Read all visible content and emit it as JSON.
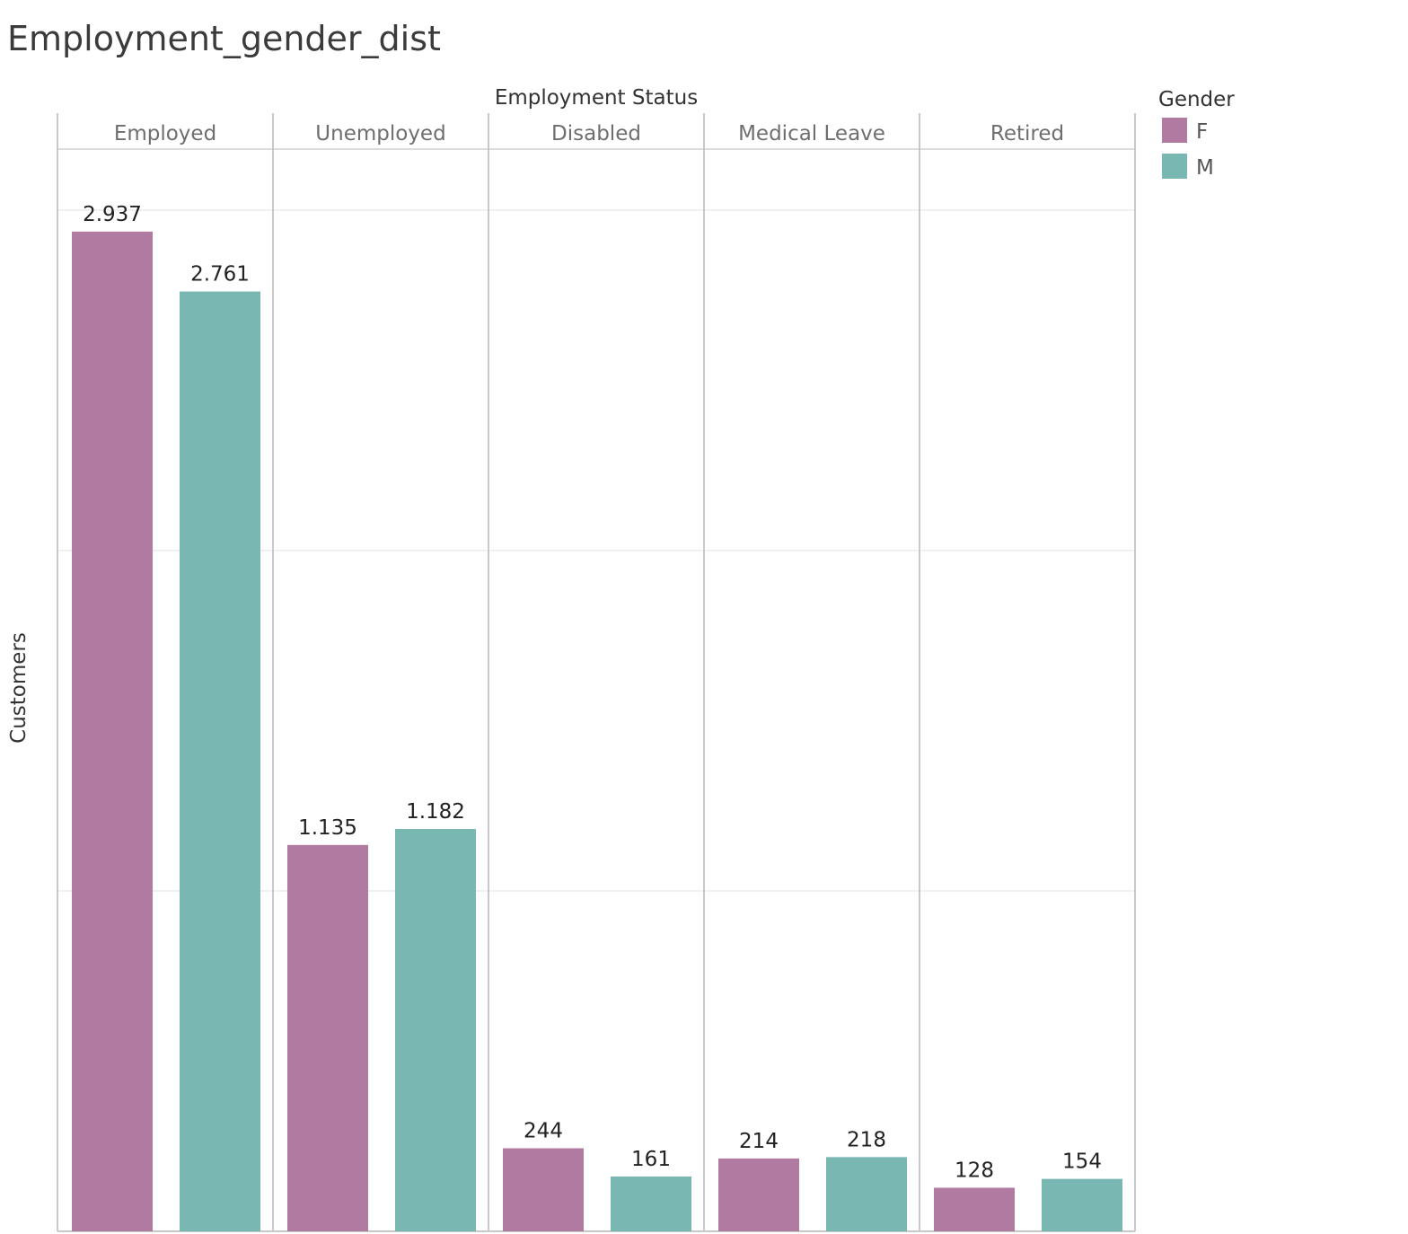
{
  "title": "Employment_gender_dist",
  "chart_data": {
    "type": "bar",
    "title": "Employment_gender_dist",
    "column_header": "Employment Status",
    "ylabel": "Customers",
    "categories": [
      "Employed",
      "Unemployed",
      "Disabled",
      "Medical Leave",
      "Retired"
    ],
    "series": [
      {
        "name": "F",
        "color": "#B07AA1",
        "values": [
          2937,
          1135,
          244,
          214,
          128
        ],
        "labels": [
          "2.937",
          "1.135",
          "244",
          "214",
          "128"
        ]
      },
      {
        "name": "M",
        "color": "#79B7B2",
        "values": [
          2761,
          1182,
          161,
          218,
          154
        ],
        "labels": [
          "2.761",
          "1.182",
          "161",
          "218",
          "154"
        ]
      }
    ],
    "ylim": [
      0,
      3282
    ],
    "gridlines": [
      1000,
      2000,
      3000
    ],
    "legend": {
      "title": "Gender",
      "position": "top-right"
    },
    "grid": true
  }
}
